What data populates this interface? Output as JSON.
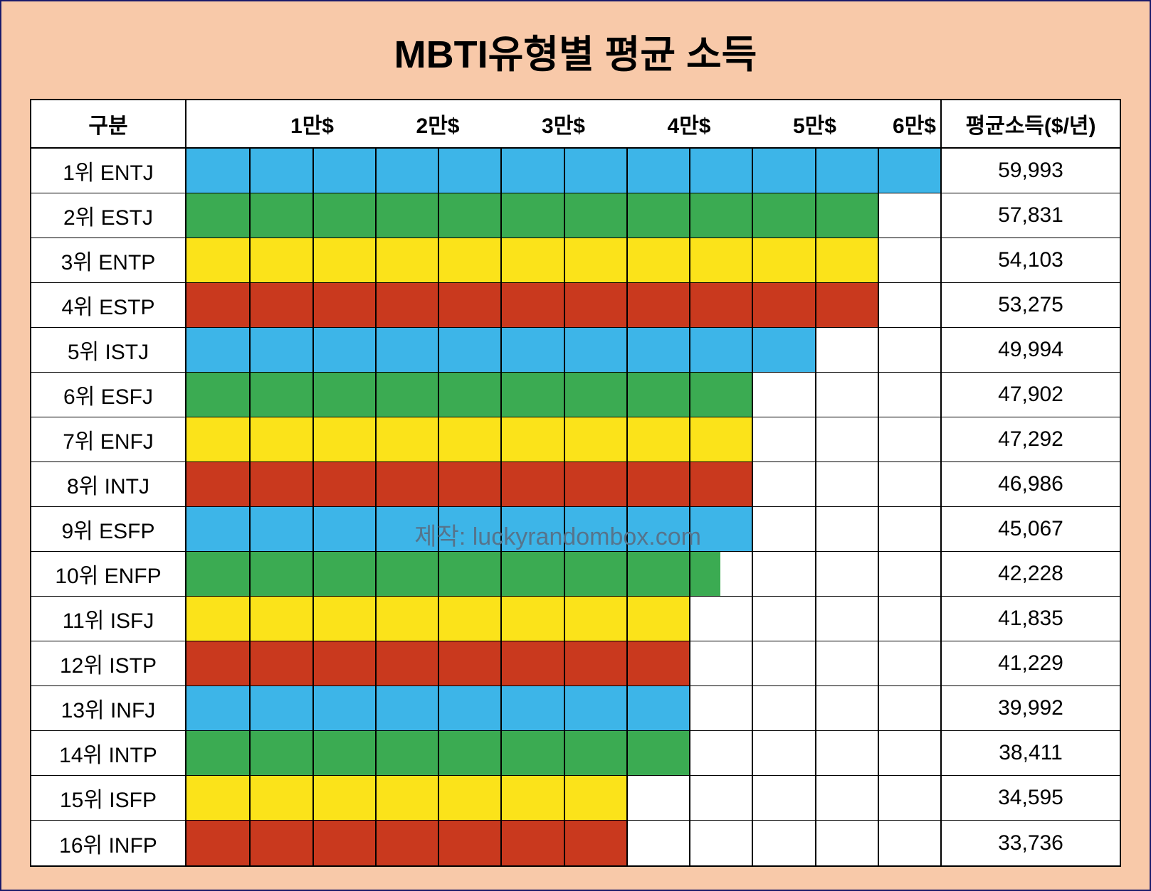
{
  "title": "MBTI유형별 평균 소득",
  "header": {
    "category": "구분",
    "value": "평균소득($/년)"
  },
  "chart": {
    "type": "bar",
    "x_max": 60000,
    "grid_positions": [
      5000,
      10000,
      15000,
      20000,
      25000,
      30000,
      35000,
      40000,
      45000,
      50000,
      55000
    ],
    "tick_labels": [
      {
        "pos": 10000,
        "text": "1만$"
      },
      {
        "pos": 20000,
        "text": "2만$"
      },
      {
        "pos": 30000,
        "text": "3만$"
      },
      {
        "pos": 40000,
        "text": "4만$"
      },
      {
        "pos": 50000,
        "text": "5만$"
      },
      {
        "pos": 60000,
        "text": "6만$"
      }
    ],
    "colors": {
      "blue": "#3db5e8",
      "green": "#3bab52",
      "yellow": "#fbe31a",
      "red": "#c9391e",
      "background": "#ffffff",
      "frame_bg": "#f8c9a9",
      "border": "#000000",
      "outer_border": "#1a1a6b",
      "watermark": "#56748c"
    },
    "rows": [
      {
        "rank": "1위 ENTJ",
        "value": 59993,
        "value_text": "59,993",
        "color": "blue"
      },
      {
        "rank": "2위 ESTJ",
        "value": 57831,
        "value_text": "57,831",
        "color": "green",
        "bar_override": 55000
      },
      {
        "rank": "3위 ENTP",
        "value": 54103,
        "value_text": "54,103",
        "color": "yellow",
        "bar_override": 55000
      },
      {
        "rank": "4위 ESTP",
        "value": 53275,
        "value_text": "53,275",
        "color": "red",
        "bar_override": 55000
      },
      {
        "rank": "5위 ISTJ",
        "value": 49994,
        "value_text": "49,994",
        "color": "blue",
        "bar_override": 50000
      },
      {
        "rank": "6위 ESFJ",
        "value": 47902,
        "value_text": "47,902",
        "color": "green",
        "bar_override": 45000
      },
      {
        "rank": "7위 ENFJ",
        "value": 47292,
        "value_text": "47,292",
        "color": "yellow",
        "bar_override": 45000
      },
      {
        "rank": "8위 INTJ",
        "value": 46986,
        "value_text": "46,986",
        "color": "red",
        "bar_override": 45000
      },
      {
        "rank": "9위 ESFP",
        "value": 45067,
        "value_text": "45,067",
        "color": "blue",
        "bar_override": 45000
      },
      {
        "rank": "10위 ENFP",
        "value": 42228,
        "value_text": "42,228",
        "color": "green",
        "bar_override": 42500
      },
      {
        "rank": "11위 ISFJ",
        "value": 41835,
        "value_text": "41,835",
        "color": "yellow",
        "bar_override": 40000
      },
      {
        "rank": "12위 ISTP",
        "value": 41229,
        "value_text": "41,229",
        "color": "red",
        "bar_override": 40000
      },
      {
        "rank": "13위 INFJ",
        "value": 39992,
        "value_text": "39,992",
        "color": "blue",
        "bar_override": 40000
      },
      {
        "rank": "14위 INTP",
        "value": 38411,
        "value_text": "38,411",
        "color": "green",
        "bar_override": 40000
      },
      {
        "rank": "15위 ISFP",
        "value": 34595,
        "value_text": "34,595",
        "color": "yellow",
        "bar_override": 35000
      },
      {
        "rank": "16위 INFP",
        "value": 33736,
        "value_text": "33,736",
        "color": "red",
        "bar_override": 35000
      }
    ]
  },
  "watermark": "제작: luckyrandombox.com",
  "typography": {
    "title_fontsize": 54,
    "header_fontsize": 30,
    "body_fontsize": 30,
    "watermark_fontsize": 34
  }
}
